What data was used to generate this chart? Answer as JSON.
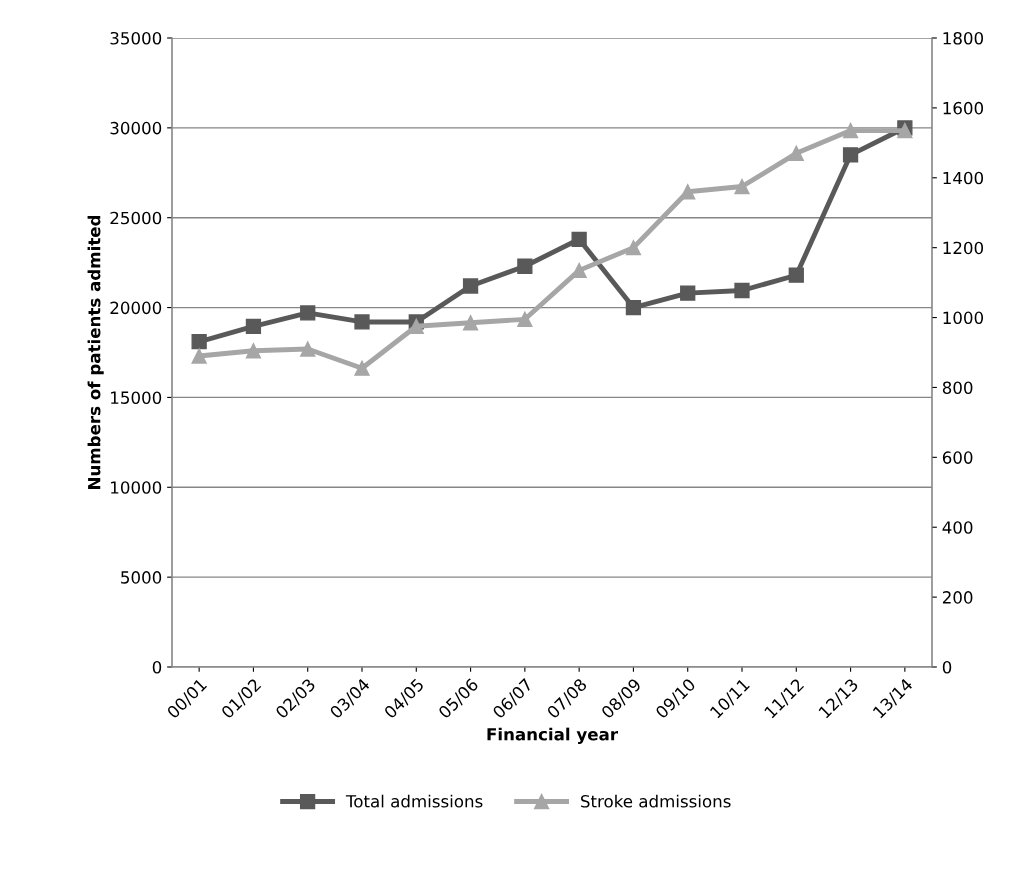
{
  "chart_data": {
    "type": "line",
    "xlabel": "Financial year",
    "ylabel": "Numbers of patients admited",
    "categories": [
      "00/01",
      "01/02",
      "02/03",
      "03/04",
      "04/05",
      "05/06",
      "06/07",
      "07/08",
      "08/09",
      "09/10",
      "10/11",
      "11/12",
      "12/13",
      "13/14"
    ],
    "series": [
      {
        "name": "Total admissions",
        "color": "#595959",
        "marker": "square",
        "values": [
          18100,
          18950,
          19700,
          19200,
          19200,
          21200,
          22300,
          23800,
          20000,
          20800,
          20950,
          21800,
          28500,
          30000
        ]
      },
      {
        "name": "Stroke admissions",
        "color": "#a6a6a6",
        "marker": "triangle",
        "axis": "y2",
        "values": [
          890,
          905,
          910,
          855,
          975,
          985,
          995,
          1135,
          1200,
          1360,
          1375,
          1470,
          1535,
          1535
        ]
      }
    ],
    "ylim": [
      0,
      35000
    ],
    "yticks": [
      0,
      5000,
      10000,
      15000,
      20000,
      25000,
      30000,
      35000
    ],
    "y2lim": [
      0,
      1800
    ],
    "y2ticks": [
      0,
      200,
      400,
      600,
      800,
      1000,
      1200,
      1400,
      1600,
      1800
    ],
    "grid": "y",
    "legend": "bottom",
    "line_style": "solid"
  }
}
